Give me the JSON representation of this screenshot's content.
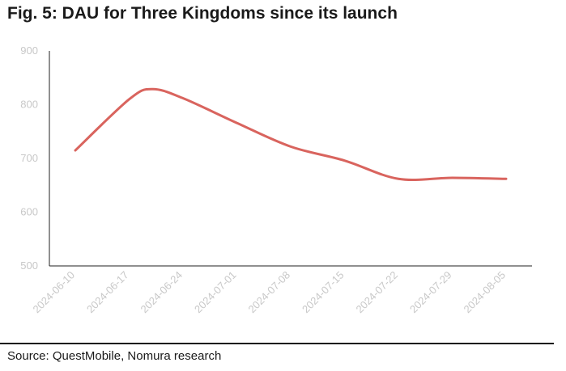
{
  "title": "Fig. 5: DAU for Three Kingdoms since its launch",
  "source": "Source: QuestMobile, Nomura research",
  "chart_data": {
    "type": "line",
    "title": "Fig. 5: DAU for Three Kingdoms since its launch",
    "xlabel": "",
    "ylabel": "",
    "ylim": [
      500,
      900
    ],
    "yticks": [
      500,
      600,
      700,
      800,
      900
    ],
    "x_tick_labels": [
      "2024-06-10",
      "2024-06-17",
      "2024-06-24",
      "2024-07-01",
      "2024-07-08",
      "2024-07-15",
      "2024-07-22",
      "2024-07-29",
      "2024-08-05"
    ],
    "x": [
      "2024-06-10",
      "2024-06-17",
      "2024-06-20",
      "2024-06-24",
      "2024-07-01",
      "2024-07-08",
      "2024-07-15",
      "2024-07-22",
      "2024-07-29",
      "2024-08-05"
    ],
    "series": [
      {
        "values": [
          715,
          810,
          829,
          812,
          766,
          722,
          696,
          662,
          664,
          662
        ],
        "color": "#d9645e"
      }
    ],
    "grid": false,
    "legend": "none",
    "colors": {
      "line": "#d9645e",
      "axis": "#222222",
      "tick_label": "#c8c8c8"
    }
  }
}
